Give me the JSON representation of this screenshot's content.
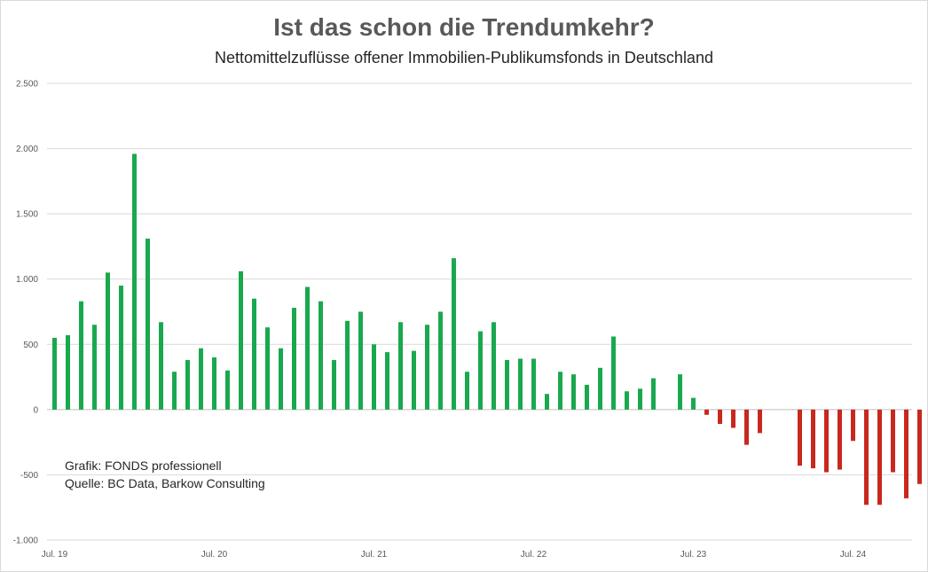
{
  "chart_data": {
    "type": "bar",
    "title": "Ist das schon die Trendumkehr?",
    "subtitle": "Nettomittelzuflüsse offener Immobilien-Publikumsfonds in Deutschland",
    "xlabel": "",
    "ylabel": "",
    "ylim": [
      -1000,
      2500
    ],
    "y_ticks": [
      2500,
      2000,
      1500,
      1000,
      500,
      0,
      -500,
      -1000
    ],
    "y_tick_labels": [
      "2.500",
      "2.000",
      "1.500",
      "1.000",
      "500",
      "0",
      "-500",
      "-1.000"
    ],
    "x_tick_labels": [
      {
        "label": "Jul. 19",
        "index": 0
      },
      {
        "label": "Jul. 20",
        "index": 12
      },
      {
        "label": "Jul. 21",
        "index": 24
      },
      {
        "label": "Jul. 22",
        "index": 36
      },
      {
        "label": "Jul. 23",
        "index": 48
      },
      {
        "label": "Jul. 24",
        "index": 60
      }
    ],
    "grid": true,
    "positive_color": "#1aa84f",
    "negative_color": "#c8281e",
    "values": [
      550,
      570,
      830,
      650,
      1050,
      950,
      1960,
      1310,
      670,
      290,
      380,
      470,
      400,
      300,
      1060,
      850,
      630,
      470,
      780,
      940,
      830,
      380,
      680,
      750,
      500,
      440,
      670,
      450,
      650,
      750,
      1160,
      290,
      600,
      670,
      380,
      390,
      390,
      120,
      290,
      270,
      190,
      320,
      560,
      140,
      160,
      240,
      null,
      270,
      90,
      -40,
      -110,
      -140,
      -270,
      -180,
      null,
      null,
      -430,
      -450,
      -480,
      -460,
      -240,
      -730,
      -730,
      -480,
      -680,
      -570
    ],
    "annotations": [
      "Grafik: FONDS professionell",
      "Quelle: BC Data, Barkow Consulting"
    ]
  }
}
